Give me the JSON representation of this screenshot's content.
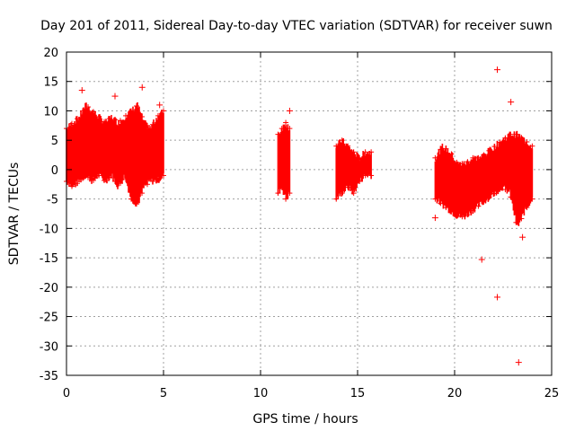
{
  "chart_data": {
    "type": "scatter",
    "title": "Day 201 of 2011, Sidereal Day-to-day VTEC variation (SDTVAR) for receiver suwn",
    "xlabel": "GPS time / hours",
    "ylabel": "SDTVAR / TECUs",
    "xlim": [
      0,
      25
    ],
    "ylim": [
      -35,
      20
    ],
    "xticks": [
      0,
      5,
      10,
      15,
      20,
      25
    ],
    "yticks": [
      -35,
      -30,
      -25,
      -20,
      -15,
      -10,
      -5,
      0,
      5,
      10,
      15,
      20
    ],
    "grid": true,
    "series_color": "#ff0000",
    "marker": "+",
    "bands": [
      {
        "x_start": 0.0,
        "x_end": 5.0,
        "low": [
          -2,
          -3,
          -2,
          -1,
          -2,
          -1,
          -2,
          -1,
          -3,
          -1,
          -5,
          -6,
          -3,
          -2,
          -2,
          -1
        ],
        "high": [
          7,
          8,
          9,
          11,
          10,
          9,
          8,
          9,
          8,
          9,
          10,
          11,
          8,
          7,
          9,
          10
        ]
      },
      {
        "x_start": 10.9,
        "x_end": 11.5,
        "low": [
          -4,
          -3,
          -5,
          -4
        ],
        "high": [
          6,
          7,
          8,
          7
        ]
      },
      {
        "x_start": 13.9,
        "x_end": 15.7,
        "low": [
          -5,
          -4,
          -3,
          -4,
          -2,
          -1,
          -1
        ],
        "high": [
          4,
          5,
          4,
          3,
          2,
          3,
          3
        ]
      },
      {
        "x_start": 19.0,
        "x_end": 24.0,
        "low": [
          -5,
          -6,
          -7,
          -8,
          -8,
          -7,
          -6,
          -5,
          -4,
          -3,
          -4,
          -10,
          -7,
          -5
        ],
        "high": [
          2,
          4,
          3,
          1,
          1,
          2,
          2,
          3,
          4,
          5,
          6,
          6,
          5,
          4
        ]
      }
    ],
    "outliers": [
      {
        "x": 0.8,
        "y": 13.5
      },
      {
        "x": 2.5,
        "y": 12.5
      },
      {
        "x": 3.9,
        "y": 14.0
      },
      {
        "x": 4.8,
        "y": 11.0
      },
      {
        "x": 11.5,
        "y": 10.0
      },
      {
        "x": 22.2,
        "y": 17.0
      },
      {
        "x": 22.9,
        "y": 11.5
      },
      {
        "x": 19.0,
        "y": -8.2
      },
      {
        "x": 21.4,
        "y": -15.3
      },
      {
        "x": 22.2,
        "y": -21.7
      },
      {
        "x": 23.3,
        "y": -32.8
      },
      {
        "x": 23.5,
        "y": -11.5
      }
    ]
  }
}
